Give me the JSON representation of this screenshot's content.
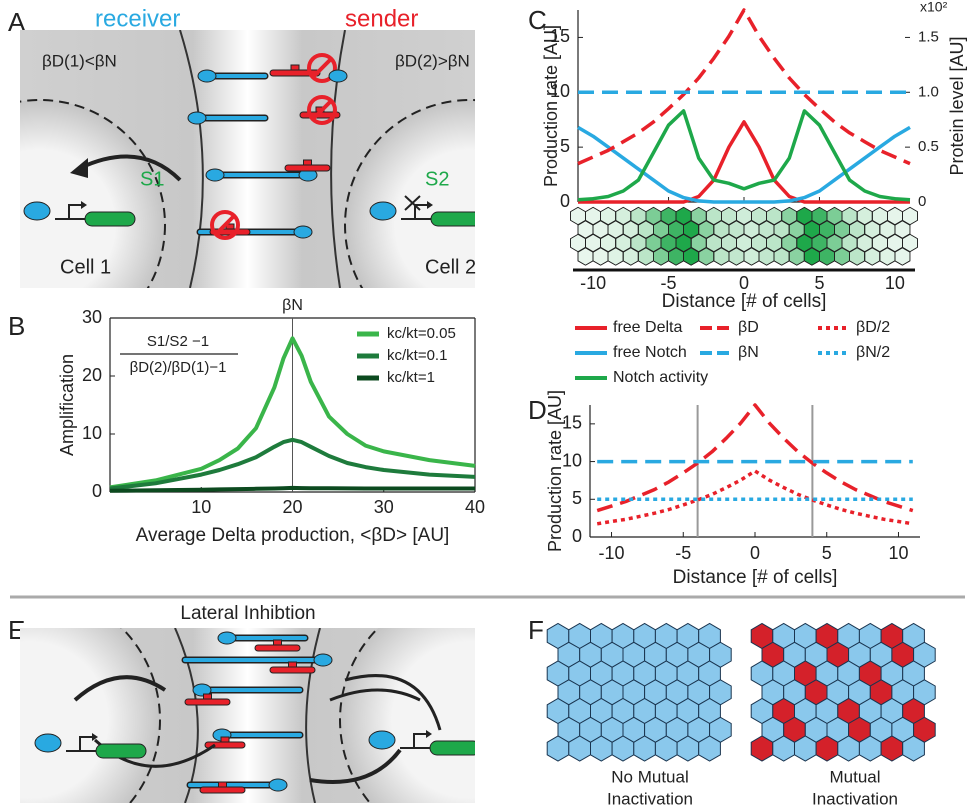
{
  "panels": {
    "labels": [
      "A",
      "B",
      "C",
      "D",
      "E",
      "F"
    ]
  },
  "panel_a": {
    "receiver": "receiver",
    "sender": "sender",
    "receiver_condition": "βD(1)<βN",
    "sender_condition": "βD(2)>βN",
    "signal_1": "S1",
    "signal_2": "S2",
    "cell_1": "Cell 1",
    "cell_2": "Cell 2"
  },
  "panel_e": {
    "title": "Lateral Inhibtion"
  },
  "panel_f": {
    "left_caption": [
      "No Mutual",
      "Inactivation"
    ],
    "right_caption": [
      "Mutual",
      "Inactivation"
    ]
  },
  "chart_data": [
    {
      "type": "line",
      "ylabel": "Amplification",
      "xlabel": "Average Delta production, <βD> [AU]",
      "xlim": [
        0,
        40
      ],
      "ylim": [
        0,
        30
      ],
      "xticks": [
        10,
        20,
        30,
        40
      ],
      "yticks": [
        0,
        10,
        20,
        30
      ],
      "annotation": {
        "numerator": "S1/S2 −1",
        "denominator": "βD(2)/βD(1)−1"
      },
      "vline": {
        "x": 20,
        "label": "βN"
      },
      "legend": "upper right",
      "x": [
        0,
        5,
        10,
        12,
        14,
        16,
        18,
        19,
        20,
        21,
        22,
        24,
        26,
        28,
        30,
        35,
        40
      ],
      "series": [
        {
          "name": "kc/kt=0.05",
          "color": "#3ab54a",
          "linestyle": "solid",
          "values": [
            0.8,
            2,
            4,
            5.5,
            7.5,
            11,
            18,
            23,
            26.5,
            23.5,
            19,
            13,
            10,
            8,
            7,
            5.5,
            4.5
          ]
        },
        {
          "name": "kc/kt=0.1",
          "color": "#1e7b3c",
          "linestyle": "solid",
          "values": [
            0.6,
            1.5,
            3,
            3.8,
            4.8,
            6,
            7.8,
            8.6,
            9,
            8.6,
            7.8,
            6.2,
            5,
            4.3,
            3.8,
            3,
            2.6
          ]
        },
        {
          "name": "kc/kt=1",
          "color": "#0c4a1f",
          "linestyle": "solid",
          "values": [
            0.2,
            0.3,
            0.4,
            0.45,
            0.5,
            0.55,
            0.6,
            0.65,
            0.7,
            0.68,
            0.66,
            0.64,
            0.62,
            0.6,
            0.6,
            0.6,
            0.6
          ]
        }
      ]
    },
    {
      "type": "line",
      "ylabel": "Production rate [AU]",
      "y2label": "Protein level [AU]",
      "y2unit": "x10²",
      "xlabel": "Distance [# of cells]",
      "xlim": [
        -11,
        11
      ],
      "ylim": [
        0,
        17.5
      ],
      "y2lim": [
        0,
        1.75
      ],
      "xticks": [
        -10,
        -5,
        0,
        5,
        10
      ],
      "yticks": [
        0,
        5,
        10,
        15
      ],
      "y2ticks": [
        0,
        0.5,
        {
          "value": 1,
          "label": "1.0"
        },
        1.5
      ],
      "x": [
        -11,
        -10,
        -9,
        -8,
        -7,
        -6,
        -5,
        -4,
        -3,
        -2,
        -1,
        0,
        1,
        2,
        3,
        4,
        5,
        6,
        7,
        8,
        9,
        10,
        11
      ],
      "series": [
        {
          "name": "free Delta",
          "color": "#e8212a",
          "linestyle": "solid",
          "axis": "y2",
          "values": [
            0,
            0,
            0,
            0,
            0,
            0,
            0,
            0,
            0.05,
            0.2,
            0.5,
            0.73,
            0.5,
            0.2,
            0.05,
            0,
            0,
            0,
            0,
            0,
            0,
            0,
            0
          ]
        },
        {
          "name": "free Notch",
          "color": "#29a9e1",
          "linestyle": "solid",
          "axis": "y2",
          "values": [
            0.68,
            0.6,
            0.5,
            0.4,
            0.3,
            0.2,
            0.1,
            0.04,
            0.01,
            0,
            0,
            0,
            0,
            0,
            0.01,
            0.04,
            0.1,
            0.2,
            0.3,
            0.4,
            0.5,
            0.6,
            0.68
          ]
        },
        {
          "name": "Notch activity",
          "color": "#1ea84a",
          "linestyle": "solid",
          "values": [
            0.2,
            0.3,
            0.5,
            1,
            2,
            4.5,
            7,
            8.3,
            4,
            2,
            1.7,
            1.2,
            1.7,
            2,
            4,
            8.3,
            7,
            4.5,
            2,
            1,
            0.5,
            0.3,
            0.2
          ]
        },
        {
          "name": "βD",
          "color": "#e8212a",
          "linestyle": "dashed",
          "values": [
            3.5,
            4.1,
            4.7,
            5.5,
            6.3,
            7.3,
            8.5,
            9.8,
            11.3,
            13.1,
            15.1,
            17.5,
            15.1,
            13.1,
            11.3,
            9.8,
            8.5,
            7.3,
            6.3,
            5.5,
            4.7,
            4.1,
            3.5
          ]
        },
        {
          "name": "βN",
          "color": "#29a9e1",
          "linestyle": "dashed",
          "values": [
            10,
            10,
            10,
            10,
            10,
            10,
            10,
            10,
            10,
            10,
            10,
            10,
            10,
            10,
            10,
            10,
            10,
            10,
            10,
            10,
            10,
            10,
            10
          ]
        }
      ]
    },
    {
      "type": "line",
      "ylabel": "Production rate [AU]",
      "xlabel": "Distance [# of cells]",
      "xlim": [
        -11.5,
        11.5
      ],
      "ylim": [
        0,
        17.5
      ],
      "xticks": [
        -10,
        -5,
        0,
        5,
        10
      ],
      "yticks": [
        0,
        5,
        10,
        15
      ],
      "vlines": [
        -4,
        4
      ],
      "x": [
        -11,
        -10,
        -9,
        -8,
        -7,
        -6,
        -5,
        -4,
        -3,
        -2,
        -1,
        0,
        1,
        2,
        3,
        4,
        5,
        6,
        7,
        8,
        9,
        10,
        11
      ],
      "series": [
        {
          "name": "βD",
          "color": "#e8212a",
          "linestyle": "dashed",
          "values": [
            3.5,
            4.1,
            4.7,
            5.5,
            6.3,
            7.3,
            8.5,
            9.8,
            11.3,
            13.1,
            15.1,
            17.5,
            15.1,
            13.1,
            11.3,
            9.8,
            8.5,
            7.3,
            6.3,
            5.5,
            4.7,
            4.1,
            3.5
          ]
        },
        {
          "name": "βN",
          "color": "#29a9e1",
          "linestyle": "dashed",
          "values": [
            10,
            10,
            10,
            10,
            10,
            10,
            10,
            10,
            10,
            10,
            10,
            10,
            10,
            10,
            10,
            10,
            10,
            10,
            10,
            10,
            10,
            10,
            10
          ]
        },
        {
          "name": "βD/2",
          "color": "#e8212a",
          "linestyle": "dotted",
          "values": [
            1.75,
            2.05,
            2.35,
            2.75,
            3.15,
            3.65,
            4.25,
            4.9,
            5.65,
            6.55,
            7.55,
            8.75,
            7.55,
            6.55,
            5.65,
            4.9,
            4.25,
            3.65,
            3.15,
            2.75,
            2.35,
            2.05,
            1.75
          ]
        },
        {
          "name": "βN/2",
          "color": "#29a9e1",
          "linestyle": "dotted",
          "values": [
            5,
            5,
            5,
            5,
            5,
            5,
            5,
            5,
            5,
            5,
            5,
            5,
            5,
            5,
            5,
            5,
            5,
            5,
            5,
            5,
            5,
            5,
            5
          ]
        }
      ]
    }
  ]
}
